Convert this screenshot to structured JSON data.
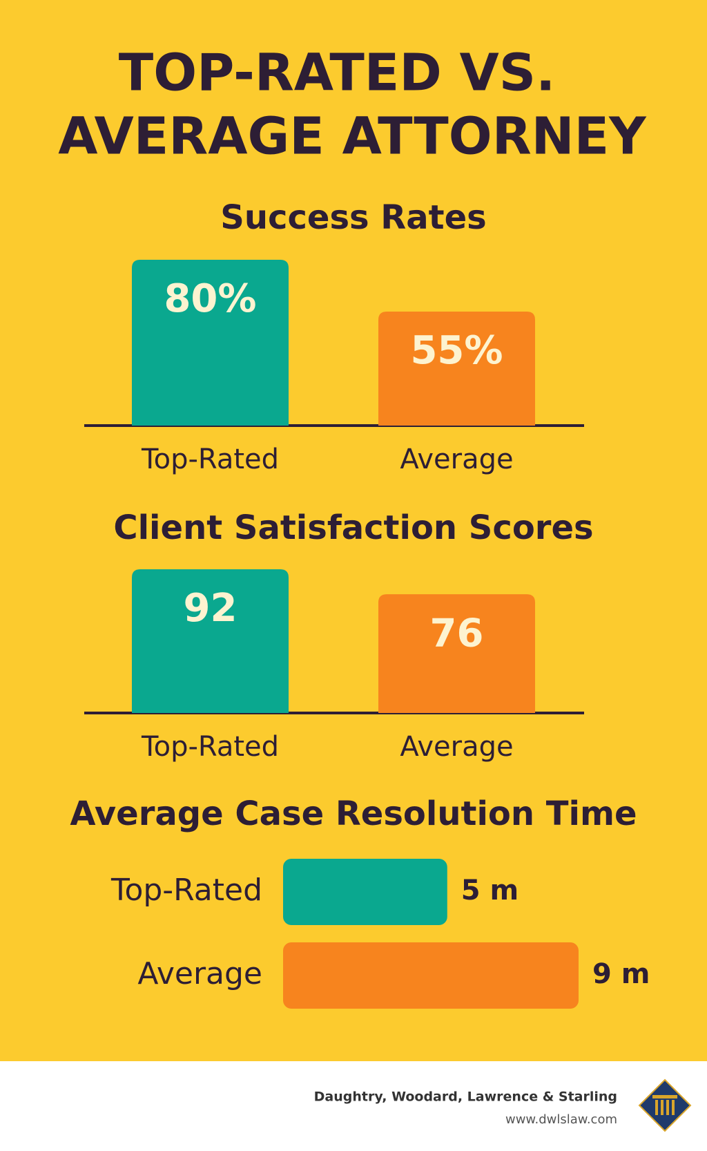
{
  "title": [
    "TOP-RATED VS.",
    "AVERAGE ATTORNEY"
  ],
  "chart_data": [
    {
      "type": "bar",
      "title": "Success Rates",
      "categories": [
        "Top-Rated",
        "Average"
      ],
      "values": [
        80,
        55
      ],
      "value_labels": [
        "80%",
        "55%"
      ],
      "colors": [
        "#0aa88f",
        "#f7841e"
      ]
    },
    {
      "type": "bar",
      "title": "Client Satisfaction Scores",
      "categories": [
        "Top-Rated",
        "Average"
      ],
      "values": [
        92,
        76
      ],
      "colors": [
        "#0aa88f",
        "#f7841e"
      ]
    },
    {
      "type": "hbar",
      "title": "Average Case Resolution Time",
      "categories": [
        "Top-Rated",
        "Average"
      ],
      "values": [
        5,
        9
      ],
      "value_labels": [
        "5 m",
        "9 m"
      ],
      "colors": [
        "#0aa88f",
        "#f7841e"
      ]
    }
  ],
  "footer": {
    "firm": "Daughtry, Woodard, Lawrence & Starling",
    "url": "www.dwlslaw.com"
  }
}
